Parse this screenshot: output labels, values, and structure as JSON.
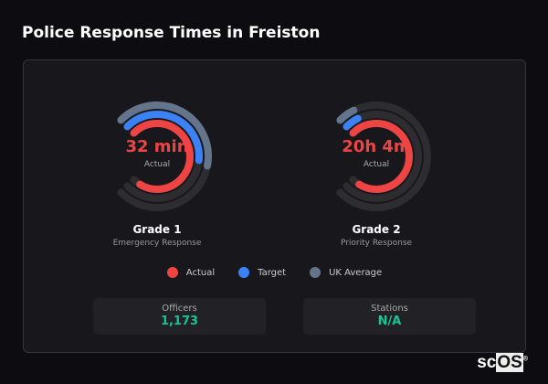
{
  "title": "Police Response Times in Freiston",
  "colors": {
    "actual": "#ef4444",
    "target": "#3b82f6",
    "uk_average": "#64748b",
    "track": "#2c2c31",
    "stat_value": "#10c79a"
  },
  "gauges": [
    {
      "value": "32 min",
      "sub": "Actual",
      "name": "Grade 1",
      "desc": "Emergency Response",
      "fill": {
        "uk_average": 0.54,
        "target": 0.52,
        "actual": 0.95
      }
    },
    {
      "value": "20h 4m",
      "sub": "Actual",
      "name": "Grade 2",
      "desc": "Priority Response",
      "fill": {
        "uk_average": 0.07,
        "target": 0.07,
        "actual": 0.95
      }
    }
  ],
  "legend": [
    {
      "label": "Actual",
      "key": "actual"
    },
    {
      "label": "Target",
      "key": "target"
    },
    {
      "label": "UK Average",
      "key": "uk_average"
    }
  ],
  "stats": [
    {
      "label": "Officers",
      "value": "1,173"
    },
    {
      "label": "Stations",
      "value": "N/A"
    }
  ],
  "logo": "scOS"
}
